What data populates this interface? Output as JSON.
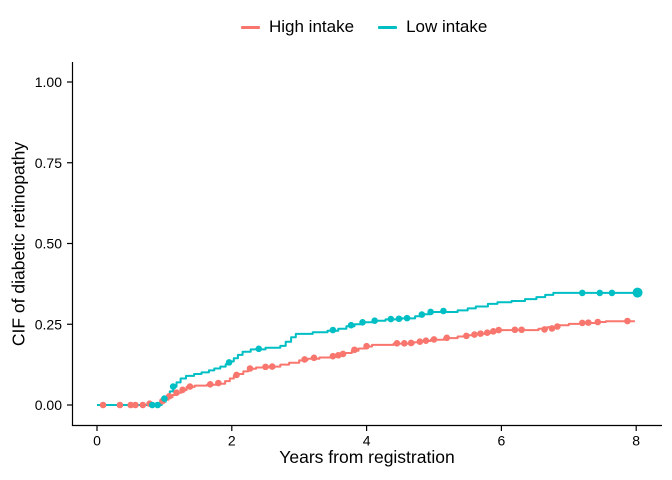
{
  "chart_data": {
    "type": "line",
    "subtype": "step-cumulative-incidence",
    "title": "",
    "x_axis": {
      "title": "Years from registration",
      "range": [
        0,
        8.4
      ],
      "ticks": [
        {
          "value": 0,
          "label": "0"
        },
        {
          "value": 2,
          "label": "2"
        },
        {
          "value": 4,
          "label": "4"
        },
        {
          "value": 6,
          "label": "6"
        },
        {
          "value": 8,
          "label": "8"
        }
      ]
    },
    "y_axis": {
      "title": "CIF of diabetic retinopathy",
      "range": [
        0,
        1.06
      ],
      "ticks": [
        {
          "value": 0.0,
          "label": "0.00"
        },
        {
          "value": 0.25,
          "label": "0.25"
        },
        {
          "value": 0.5,
          "label": "0.50"
        },
        {
          "value": 0.75,
          "label": "0.75"
        },
        {
          "value": 1.0,
          "label": "1.00"
        }
      ]
    },
    "grid": "off",
    "legend_position": "top-center",
    "series": [
      {
        "name": "High intake",
        "color": "#F8766D",
        "end_t": 7.98,
        "steps": [
          [
            0,
            0
          ],
          [
            0.95,
            0.008
          ],
          [
            1.0,
            0.016
          ],
          [
            1.06,
            0.024
          ],
          [
            1.12,
            0.031
          ],
          [
            1.18,
            0.038
          ],
          [
            1.25,
            0.046
          ],
          [
            1.33,
            0.056
          ],
          [
            1.45,
            0.06
          ],
          [
            1.63,
            0.063
          ],
          [
            1.78,
            0.066
          ],
          [
            1.9,
            0.074
          ],
          [
            1.97,
            0.082
          ],
          [
            2.03,
            0.09
          ],
          [
            2.1,
            0.096
          ],
          [
            2.17,
            0.104
          ],
          [
            2.24,
            0.112
          ],
          [
            2.36,
            0.116
          ],
          [
            2.55,
            0.119
          ],
          [
            2.72,
            0.125
          ],
          [
            2.85,
            0.131
          ],
          [
            3.0,
            0.138
          ],
          [
            3.12,
            0.143
          ],
          [
            3.3,
            0.147
          ],
          [
            3.5,
            0.151
          ],
          [
            3.6,
            0.156
          ],
          [
            3.68,
            0.161
          ],
          [
            3.78,
            0.168
          ],
          [
            3.88,
            0.175
          ],
          [
            3.98,
            0.181
          ],
          [
            4.08,
            0.186
          ],
          [
            4.4,
            0.19
          ],
          [
            4.7,
            0.194
          ],
          [
            4.82,
            0.198
          ],
          [
            4.95,
            0.202
          ],
          [
            5.15,
            0.207
          ],
          [
            5.35,
            0.212
          ],
          [
            5.5,
            0.216
          ],
          [
            5.62,
            0.22
          ],
          [
            5.75,
            0.223
          ],
          [
            5.85,
            0.227
          ],
          [
            5.93,
            0.232
          ],
          [
            6.55,
            0.236
          ],
          [
            6.68,
            0.241
          ],
          [
            6.82,
            0.247
          ],
          [
            7.0,
            0.251
          ],
          [
            7.2,
            0.254
          ],
          [
            7.4,
            0.257
          ],
          [
            7.55,
            0.259
          ]
        ],
        "markers": [
          [
            0.09,
            0
          ],
          [
            0.34,
            0
          ],
          [
            0.5,
            0
          ],
          [
            0.57,
            0
          ],
          [
            0.68,
            0
          ],
          [
            0.78,
            0.004
          ],
          [
            0.97,
            0.012
          ],
          [
            1.07,
            0.027
          ],
          [
            1.18,
            0.038
          ],
          [
            1.27,
            0.047
          ],
          [
            1.38,
            0.057
          ],
          [
            1.68,
            0.064
          ],
          [
            1.8,
            0.068
          ],
          [
            2.07,
            0.093
          ],
          [
            2.27,
            0.113
          ],
          [
            2.5,
            0.118
          ],
          [
            2.6,
            0.119
          ],
          [
            3.08,
            0.141
          ],
          [
            3.22,
            0.146
          ],
          [
            3.5,
            0.151
          ],
          [
            3.58,
            0.154
          ],
          [
            3.65,
            0.158
          ],
          [
            3.82,
            0.171
          ],
          [
            4.0,
            0.182
          ],
          [
            4.45,
            0.191
          ],
          [
            4.56,
            0.191
          ],
          [
            4.66,
            0.192
          ],
          [
            4.79,
            0.196
          ],
          [
            4.88,
            0.199
          ],
          [
            5.0,
            0.203
          ],
          [
            5.19,
            0.208
          ],
          [
            5.48,
            0.214
          ],
          [
            5.6,
            0.218
          ],
          [
            5.69,
            0.221
          ],
          [
            5.79,
            0.224
          ],
          [
            5.88,
            0.228
          ],
          [
            5.96,
            0.232
          ],
          [
            6.2,
            0.233
          ],
          [
            6.3,
            0.233
          ],
          [
            6.64,
            0.234
          ],
          [
            6.75,
            0.237
          ],
          [
            6.83,
            0.243
          ],
          [
            7.2,
            0.254
          ],
          [
            7.29,
            0.255
          ],
          [
            7.43,
            0.257
          ],
          [
            7.87,
            0.26
          ]
        ]
      },
      {
        "name": "Low intake",
        "color": "#00BFC4",
        "end_t": 8.06,
        "steps": [
          [
            0,
            0
          ],
          [
            0.96,
            0.01
          ],
          [
            1.02,
            0.025
          ],
          [
            1.08,
            0.042
          ],
          [
            1.13,
            0.057
          ],
          [
            1.18,
            0.07
          ],
          [
            1.24,
            0.082
          ],
          [
            1.32,
            0.09
          ],
          [
            1.44,
            0.096
          ],
          [
            1.55,
            0.101
          ],
          [
            1.66,
            0.107
          ],
          [
            1.74,
            0.113
          ],
          [
            1.83,
            0.119
          ],
          [
            1.91,
            0.126
          ],
          [
            1.97,
            0.135
          ],
          [
            2.03,
            0.145
          ],
          [
            2.09,
            0.155
          ],
          [
            2.16,
            0.165
          ],
          [
            2.28,
            0.172
          ],
          [
            2.5,
            0.177
          ],
          [
            2.72,
            0.183
          ],
          [
            2.8,
            0.196
          ],
          [
            2.88,
            0.21
          ],
          [
            2.95,
            0.22
          ],
          [
            3.2,
            0.225
          ],
          [
            3.42,
            0.23
          ],
          [
            3.58,
            0.236
          ],
          [
            3.7,
            0.244
          ],
          [
            3.82,
            0.25
          ],
          [
            3.94,
            0.256
          ],
          [
            4.1,
            0.261
          ],
          [
            4.28,
            0.265
          ],
          [
            4.52,
            0.268
          ],
          [
            4.72,
            0.275
          ],
          [
            4.84,
            0.281
          ],
          [
            4.94,
            0.288
          ],
          [
            5.35,
            0.293
          ],
          [
            5.5,
            0.299
          ],
          [
            5.62,
            0.305
          ],
          [
            5.8,
            0.313
          ],
          [
            5.94,
            0.318
          ],
          [
            6.15,
            0.322
          ],
          [
            6.35,
            0.328
          ],
          [
            6.52,
            0.334
          ],
          [
            6.65,
            0.341
          ],
          [
            6.77,
            0.347
          ]
        ],
        "markers": [
          [
            0.82,
            0
          ],
          [
            0.9,
            0
          ],
          [
            1.0,
            0.02
          ],
          [
            1.13,
            0.057
          ],
          [
            1.96,
            0.132
          ],
          [
            2.4,
            0.174
          ],
          [
            3.5,
            0.232
          ],
          [
            3.77,
            0.247
          ],
          [
            3.94,
            0.256
          ],
          [
            4.12,
            0.261
          ],
          [
            4.36,
            0.266
          ],
          [
            4.48,
            0.267
          ],
          [
            4.6,
            0.269
          ],
          [
            4.82,
            0.28
          ],
          [
            4.95,
            0.288
          ],
          [
            5.14,
            0.291
          ],
          [
            7.2,
            0.347
          ],
          [
            7.46,
            0.347
          ],
          [
            7.64,
            0.347
          ],
          [
            8.02,
            0.348,
            5
          ]
        ]
      }
    ]
  }
}
